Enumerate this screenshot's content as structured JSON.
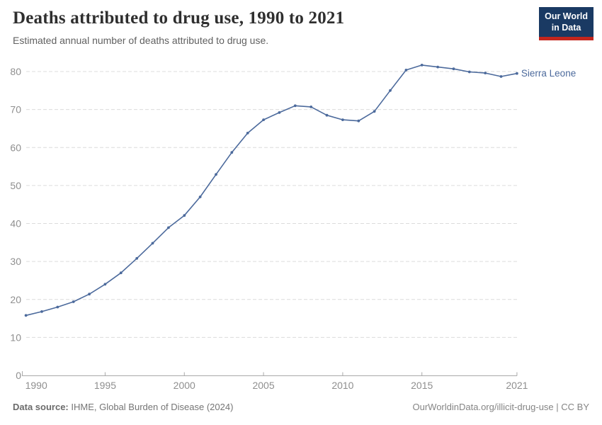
{
  "header": {
    "title": "Deaths attributed to drug use, 1990 to 2021",
    "subtitle": "Estimated annual number of deaths attributed to drug use."
  },
  "logo": {
    "line1": "Our World",
    "line2": "in Data",
    "bg_color": "#1a3a63",
    "accent_color": "#c3261d"
  },
  "footer": {
    "source_label": "Data source:",
    "source_text": "IHME, Global Burden of Disease (2024)",
    "link_text": "OurWorldinData.org/illicit-drug-use | CC BY"
  },
  "chart_data": {
    "type": "line",
    "title": "Deaths attributed to drug use, 1990 to 2021",
    "subtitle": "Estimated annual number of deaths attributed to drug use.",
    "x": [
      1990,
      1991,
      1992,
      1993,
      1994,
      1995,
      1996,
      1997,
      1998,
      1999,
      2000,
      2001,
      2002,
      2003,
      2004,
      2005,
      2006,
      2007,
      2008,
      2009,
      2010,
      2011,
      2012,
      2013,
      2014,
      2015,
      2016,
      2017,
      2018,
      2019,
      2020,
      2021
    ],
    "series": [
      {
        "name": "Sierra Leone",
        "color": "#4c6a9c",
        "values": [
          15.8,
          16.8,
          18.0,
          19.4,
          21.4,
          24.0,
          27.0,
          30.8,
          34.8,
          38.9,
          42.1,
          47.0,
          52.9,
          58.7,
          63.8,
          67.3,
          69.2,
          71.0,
          70.7,
          68.5,
          67.3,
          67.0,
          69.5,
          75.0,
          80.4,
          81.7,
          81.2,
          80.7,
          79.9,
          79.6,
          78.7,
          79.5
        ]
      }
    ],
    "xlabel": "",
    "ylabel": "",
    "ylim": [
      0,
      82
    ],
    "yticks": [
      0,
      10,
      20,
      30,
      40,
      50,
      60,
      70,
      80
    ],
    "xticks": [
      1990,
      1995,
      2000,
      2005,
      2010,
      2015,
      2021
    ],
    "grid": "horizontal-dashed",
    "legend_position": "end-of-line-label"
  }
}
